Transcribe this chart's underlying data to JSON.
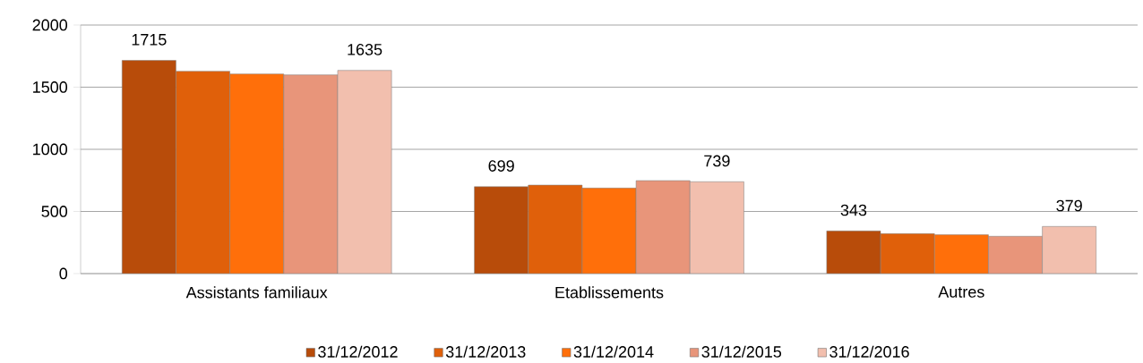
{
  "chart_data": {
    "type": "bar",
    "categories": [
      "Assistants familiaux",
      "Etablissements",
      "Autres"
    ],
    "series": [
      {
        "name": "31/12/2012",
        "color": "#b84c0a",
        "values": [
          1715,
          699,
          343
        ],
        "value_labels": [
          "1715",
          "699",
          "343"
        ]
      },
      {
        "name": "31/12/2013",
        "color": "#e0600a",
        "values": [
          1628,
          712,
          321
        ]
      },
      {
        "name": "31/12/2014",
        "color": "#ff6f0a",
        "values": [
          1606,
          688,
          312
        ]
      },
      {
        "name": "31/12/2015",
        "color": "#e8957a",
        "values": [
          1599,
          748,
          300
        ]
      },
      {
        "name": "31/12/2016",
        "color": "#f2bfae",
        "values": [
          1635,
          739,
          379
        ],
        "value_labels": [
          "1635",
          "739",
          "379"
        ]
      }
    ],
    "ylim": [
      0,
      2000
    ],
    "yticks": [
      0,
      500,
      1000,
      1500,
      2000
    ],
    "grid": "y",
    "legend": "bottom"
  }
}
